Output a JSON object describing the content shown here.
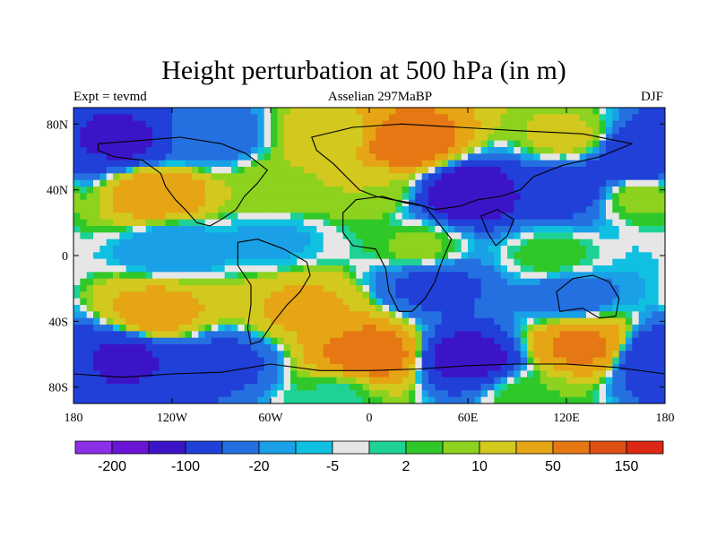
{
  "chart_data": {
    "type": "heatmap",
    "title": "Height perturbation at 500 hPa (in m)",
    "left_string": "Expt = tevmd",
    "center_string": "Asselian 297MaBP",
    "right_string": "DJF",
    "x_ticks": [
      {
        "value": -180,
        "label": "180"
      },
      {
        "value": -120,
        "label": "120W"
      },
      {
        "value": -60,
        "label": "60W"
      },
      {
        "value": 0,
        "label": "0"
      },
      {
        "value": 60,
        "label": "60E"
      },
      {
        "value": 120,
        "label": "120E"
      },
      {
        "value": 180,
        "label": "180"
      }
    ],
    "y_ticks": [
      {
        "value": 80,
        "label": "80N"
      },
      {
        "value": 40,
        "label": "40N"
      },
      {
        "value": 0,
        "label": "0"
      },
      {
        "value": -40,
        "label": "40S"
      },
      {
        "value": -80,
        "label": "80S"
      }
    ],
    "xlim": [
      -180,
      180
    ],
    "ylim": [
      -90,
      90
    ],
    "colorbar": {
      "colors": [
        "#8b2fe8",
        "#6a14d6",
        "#3c14c8",
        "#2040d8",
        "#2470e0",
        "#1aa0e6",
        "#10c0e0",
        "#e6e6e6",
        "#1ed296",
        "#30c828",
        "#8cd21e",
        "#d2c81e",
        "#e6a514",
        "#e67814",
        "#dc5014",
        "#dc2814"
      ],
      "labels": [
        {
          "boundary": 1,
          "text": "-200"
        },
        {
          "boundary": 3,
          "text": "-100"
        },
        {
          "boundary": 5,
          "text": "-20"
        },
        {
          "boundary": 7,
          "text": "-5"
        },
        {
          "boundary": 9,
          "text": "2"
        },
        {
          "boundary": 11,
          "text": "10"
        },
        {
          "boundary": 13,
          "text": "50"
        },
        {
          "boundary": 15,
          "text": "150"
        }
      ]
    },
    "field": [
      {
        "lon": -150,
        "lat": 70,
        "value": -110
      },
      {
        "lon": -100,
        "lat": 72,
        "value": -35
      },
      {
        "lon": -130,
        "lat": 38,
        "value": 80
      },
      {
        "lon": -55,
        "lat": 40,
        "value": 18
      },
      {
        "lon": -20,
        "lat": 72,
        "value": 30
      },
      {
        "lon": 20,
        "lat": 68,
        "value": 140
      },
      {
        "lon": 0,
        "lat": 40,
        "value": 20
      },
      {
        "lon": 60,
        "lat": 38,
        "value": -140
      },
      {
        "lon": 120,
        "lat": 42,
        "value": -80
      },
      {
        "lon": 165,
        "lat": 60,
        "value": -100
      },
      {
        "lon": 120,
        "lat": 72,
        "value": 25
      },
      {
        "lon": 165,
        "lat": 35,
        "value": 12
      },
      {
        "lon": -120,
        "lat": 5,
        "value": -20
      },
      {
        "lon": -60,
        "lat": 10,
        "value": -12
      },
      {
        "lon": 30,
        "lat": 5,
        "value": 12
      },
      {
        "lon": 110,
        "lat": 0,
        "value": 8
      },
      {
        "lon": -130,
        "lat": -35,
        "value": 65
      },
      {
        "lon": -40,
        "lat": -32,
        "value": 55
      },
      {
        "lon": 40,
        "lat": -18,
        "value": -60
      },
      {
        "lon": 120,
        "lat": -25,
        "value": -30
      },
      {
        "lon": -150,
        "lat": -62,
        "value": -110
      },
      {
        "lon": -90,
        "lat": -65,
        "value": -60
      },
      {
        "lon": 0,
        "lat": -60,
        "value": 130
      },
      {
        "lon": 60,
        "lat": -62,
        "value": -120
      },
      {
        "lon": 130,
        "lat": -55,
        "value": 110
      },
      {
        "lon": 175,
        "lat": -62,
        "value": -90
      },
      {
        "lon": -20,
        "lat": -85,
        "value": 4
      },
      {
        "lon": 100,
        "lat": -85,
        "value": 10
      }
    ],
    "continents": [
      {
        "name": "north-america",
        "points": [
          [
            -165,
            68
          ],
          [
            -140,
            70
          ],
          [
            -115,
            72
          ],
          [
            -90,
            68
          ],
          [
            -75,
            62
          ],
          [
            -62,
            52
          ],
          [
            -68,
            44
          ],
          [
            -76,
            36
          ],
          [
            -81,
            28
          ],
          [
            -90,
            22
          ],
          [
            -97,
            18
          ],
          [
            -105,
            20
          ],
          [
            -112,
            28
          ],
          [
            -118,
            34
          ],
          [
            -124,
            42
          ],
          [
            -127,
            50
          ],
          [
            -138,
            58
          ],
          [
            -155,
            60
          ],
          [
            -165,
            64
          ]
        ]
      },
      {
        "name": "south-america",
        "points": [
          [
            -80,
            8
          ],
          [
            -68,
            10
          ],
          [
            -52,
            4
          ],
          [
            -38,
            -4
          ],
          [
            -36,
            -12
          ],
          [
            -42,
            -22
          ],
          [
            -50,
            -30
          ],
          [
            -58,
            -40
          ],
          [
            -66,
            -52
          ],
          [
            -72,
            -54
          ],
          [
            -74,
            -44
          ],
          [
            -72,
            -30
          ],
          [
            -72,
            -18
          ],
          [
            -80,
            -6
          ]
        ]
      },
      {
        "name": "pangea-north",
        "points": [
          [
            -35,
            72
          ],
          [
            -10,
            78
          ],
          [
            20,
            80
          ],
          [
            55,
            78
          ],
          [
            90,
            76
          ],
          [
            130,
            74
          ],
          [
            160,
            68
          ],
          [
            140,
            60
          ],
          [
            118,
            55
          ],
          [
            100,
            48
          ],
          [
            92,
            40
          ],
          [
            80,
            36
          ],
          [
            66,
            34
          ],
          [
            55,
            30
          ],
          [
            40,
            28
          ],
          [
            26,
            32
          ],
          [
            14,
            34
          ],
          [
            4,
            36
          ],
          [
            -6,
            40
          ],
          [
            -14,
            48
          ],
          [
            -22,
            56
          ],
          [
            -32,
            64
          ]
        ]
      },
      {
        "name": "africa",
        "points": [
          [
            -16,
            26
          ],
          [
            -8,
            34
          ],
          [
            8,
            36
          ],
          [
            22,
            32
          ],
          [
            34,
            30
          ],
          [
            42,
            20
          ],
          [
            50,
            10
          ],
          [
            44,
            -4
          ],
          [
            40,
            -16
          ],
          [
            34,
            -26
          ],
          [
            26,
            -34
          ],
          [
            18,
            -34
          ],
          [
            12,
            -22
          ],
          [
            10,
            -8
          ],
          [
            4,
            4
          ],
          [
            -10,
            6
          ],
          [
            -16,
            14
          ]
        ]
      },
      {
        "name": "india",
        "points": [
          [
            68,
            24
          ],
          [
            78,
            28
          ],
          [
            88,
            22
          ],
          [
            84,
            12
          ],
          [
            77,
            6
          ],
          [
            72,
            14
          ]
        ]
      },
      {
        "name": "australia",
        "points": [
          [
            114,
            -22
          ],
          [
            124,
            -14
          ],
          [
            136,
            -12
          ],
          [
            146,
            -16
          ],
          [
            152,
            -26
          ],
          [
            150,
            -37
          ],
          [
            140,
            -38
          ],
          [
            130,
            -32
          ],
          [
            116,
            -34
          ]
        ]
      },
      {
        "name": "antarctica",
        "points": [
          [
            -180,
            -72
          ],
          [
            -150,
            -74
          ],
          [
            -120,
            -72
          ],
          [
            -90,
            -71
          ],
          [
            -60,
            -66
          ],
          [
            -30,
            -70
          ],
          [
            0,
            -70
          ],
          [
            30,
            -69
          ],
          [
            60,
            -67
          ],
          [
            90,
            -66
          ],
          [
            120,
            -66
          ],
          [
            150,
            -68
          ],
          [
            180,
            -72
          ]
        ]
      }
    ]
  }
}
